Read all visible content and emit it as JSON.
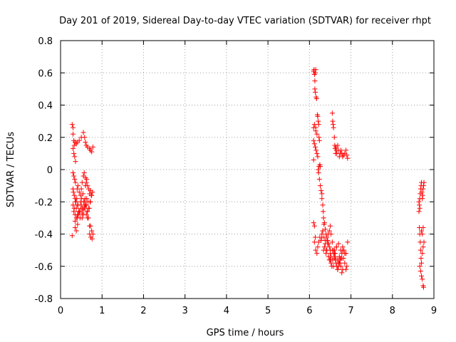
{
  "chart_data": {
    "type": "scatter",
    "title": "Day 201 of 2019, Sidereal Day-to-day VTEC variation (SDTVAR) for receiver rhpt",
    "xlabel": "GPS time / hours",
    "ylabel": "SDTVAR / TECUs",
    "xlim": [
      0,
      9
    ],
    "ylim": [
      -0.8,
      0.8
    ],
    "x_ticks": [
      0,
      1,
      2,
      3,
      4,
      5,
      6,
      7,
      8,
      9
    ],
    "x_tick_labels": [
      "0",
      "1",
      "2",
      "3",
      "4",
      "5",
      "6",
      "7",
      "8",
      "9"
    ],
    "y_ticks": [
      -0.8,
      -0.6,
      -0.4,
      -0.2,
      0,
      0.2,
      0.4,
      0.6,
      0.8
    ],
    "y_tick_labels": [
      "-0.8",
      "-0.6",
      "-0.4",
      "-0.2",
      "0",
      "0.2",
      "0.4",
      "0.6",
      "0.8"
    ],
    "grid": true,
    "marker": "+",
    "series": [
      {
        "name": "SDTVAR",
        "color": "#ff0000",
        "x": [
          0.28,
          0.3,
          0.3,
          0.32,
          0.33,
          0.35,
          0.38,
          0.4,
          0.45,
          0.5,
          0.55,
          0.58,
          0.6,
          0.62,
          0.65,
          0.7,
          0.72,
          0.75,
          0.78,
          0.3,
          0.32,
          0.34,
          0.36,
          0.3,
          0.32,
          0.34,
          0.36,
          0.3,
          0.31,
          0.33,
          0.35,
          0.37,
          0.4,
          0.42,
          0.45,
          0.48,
          0.5,
          0.52,
          0.55,
          0.57,
          0.6,
          0.62,
          0.65,
          0.68,
          0.7,
          0.72,
          0.75,
          0.77,
          0.3,
          0.33,
          0.36,
          0.39,
          0.42,
          0.45,
          0.48,
          0.51,
          0.54,
          0.57,
          0.6,
          0.63,
          0.66,
          0.69,
          0.72,
          0.32,
          0.35,
          0.38,
          0.41,
          0.44,
          0.47,
          0.5,
          0.53,
          0.56,
          0.59,
          0.62,
          0.65,
          0.68,
          0.71,
          0.74,
          0.4,
          0.43,
          0.46,
          0.49,
          0.52,
          0.55,
          0.58,
          0.61,
          0.64,
          0.67,
          0.7,
          0.35,
          0.38,
          0.41,
          0.44,
          0.35,
          0.38,
          0.41,
          0.7,
          0.73,
          0.76,
          0.72,
          0.75,
          0.78,
          0.52,
          0.55,
          0.58,
          0.62,
          0.65,
          0.6,
          0.63,
          0.28,
          6.1,
          6.11,
          6.12,
          6.13,
          6.14,
          6.15,
          6.13,
          6.14,
          6.16,
          6.17,
          6.12,
          6.15,
          6.18,
          6.1,
          6.15,
          6.1,
          6.12,
          6.14,
          6.16,
          6.18,
          6.2,
          6.19,
          6.2,
          6.21,
          6.22,
          6.23,
          6.24,
          6.21,
          6.22,
          6.23,
          6.25,
          6.26,
          6.24,
          6.26,
          6.28,
          6.3,
          6.3,
          6.32,
          6.33,
          6.34,
          6.35,
          6.36,
          6.38,
          6.4,
          6.42,
          6.44,
          6.46,
          6.48,
          6.5,
          6.52,
          6.5,
          6.55,
          6.56,
          6.57,
          6.58,
          6.6,
          6.61,
          6.62,
          6.63,
          6.64,
          6.65,
          6.66,
          6.68,
          6.7,
          6.72,
          6.74,
          6.76,
          6.78,
          6.8,
          6.82,
          6.85,
          6.88,
          6.9,
          6.92,
          6.1,
          6.1,
          6.12,
          6.14,
          6.12,
          6.15,
          6.18,
          6.2,
          6.22,
          6.25,
          6.28,
          6.3,
          6.32,
          6.35,
          6.38,
          6.4,
          6.42,
          6.45,
          6.48,
          6.5,
          6.52,
          6.55,
          6.58,
          6.6,
          6.62,
          6.65,
          6.68,
          6.7,
          6.72,
          6.75,
          6.78,
          6.8,
          6.82,
          6.85,
          6.88,
          6.9,
          6.92,
          6.3,
          6.32,
          6.34,
          6.36,
          6.38,
          6.4,
          6.42,
          6.44,
          6.46,
          6.48,
          6.5,
          6.52,
          6.54,
          6.56,
          6.58,
          6.6,
          6.62,
          6.64,
          6.66,
          6.68,
          6.7,
          6.72,
          6.74,
          6.76,
          6.78,
          6.8,
          6.55,
          6.6,
          6.65,
          6.7,
          6.75,
          6.8,
          6.85,
          6.58,
          6.63,
          6.68,
          6.73,
          6.78,
          6.83,
          6.88,
          8.64,
          8.65,
          8.66,
          8.67,
          8.68,
          8.69,
          8.7,
          8.71,
          8.72,
          8.73,
          8.74,
          8.75,
          8.76,
          8.65,
          8.66,
          8.67,
          8.68,
          8.69,
          8.7,
          8.72,
          8.74,
          8.76,
          8.66,
          8.68,
          8.7,
          8.72,
          8.74,
          8.75,
          8.7,
          8.72,
          8.74,
          8.64,
          8.66
        ],
        "y": [
          0.28,
          0.26,
          0.22,
          0.18,
          0.15,
          0.17,
          0.16,
          0.17,
          0.18,
          0.2,
          0.23,
          0.2,
          0.17,
          0.15,
          0.14,
          0.13,
          0.12,
          0.11,
          0.14,
          0.13,
          0.1,
          0.08,
          0.05,
          -0.02,
          -0.04,
          -0.06,
          -0.08,
          -0.12,
          -0.14,
          -0.16,
          -0.18,
          -0.2,
          -0.12,
          -0.1,
          -0.14,
          -0.16,
          -0.12,
          -0.08,
          -0.04,
          -0.02,
          -0.05,
          -0.08,
          -0.1,
          -0.12,
          -0.15,
          -0.13,
          -0.16,
          -0.14,
          -0.22,
          -0.24,
          -0.2,
          -0.18,
          -0.22,
          -0.26,
          -0.2,
          -0.18,
          -0.15,
          -0.2,
          -0.22,
          -0.18,
          -0.2,
          -0.24,
          -0.2,
          -0.26,
          -0.28,
          -0.24,
          -0.22,
          -0.26,
          -0.3,
          -0.22,
          -0.24,
          -0.2,
          -0.18,
          -0.22,
          -0.26,
          -0.24,
          -0.2,
          -0.16,
          -0.3,
          -0.28,
          -0.26,
          -0.24,
          -0.3,
          -0.28,
          -0.24,
          -0.22,
          -0.26,
          -0.3,
          -0.35,
          -0.32,
          -0.3,
          -0.28,
          -0.26,
          -0.36,
          -0.38,
          -0.34,
          -0.4,
          -0.42,
          -0.43,
          -0.35,
          -0.38,
          -0.4,
          -0.27,
          -0.25,
          -0.23,
          -0.28,
          -0.3,
          -0.1,
          -0.06,
          -0.41,
          0.61,
          0.62,
          0.59,
          0.55,
          0.6,
          0.62,
          0.5,
          0.48,
          0.45,
          0.44,
          0.28,
          0.26,
          0.22,
          0.26,
          0.24,
          0.18,
          0.16,
          0.14,
          0.12,
          0.1,
          0.08,
          0.34,
          0.33,
          0.3,
          0.28,
          0.2,
          0.18,
          0.0,
          -0.02,
          0.02,
          0.03,
          0.02,
          -0.06,
          -0.1,
          -0.13,
          -0.15,
          -0.18,
          -0.22,
          -0.26,
          -0.3,
          -0.34,
          -0.33,
          -0.37,
          -0.4,
          -0.42,
          -0.44,
          -0.46,
          -0.48,
          -0.5,
          -0.54,
          -0.56,
          0.35,
          0.3,
          0.28,
          0.26,
          0.2,
          0.15,
          0.13,
          0.1,
          0.14,
          0.12,
          0.1,
          0.15,
          0.12,
          0.08,
          0.1,
          0.12,
          0.1,
          0.08,
          0.09,
          0.1,
          0.12,
          0.09,
          0.07,
          0.06,
          -0.33,
          -0.35,
          -0.42,
          -0.45,
          -0.5,
          -0.52,
          -0.48,
          -0.45,
          -0.42,
          -0.44,
          -0.4,
          -0.38,
          -0.42,
          -0.46,
          -0.5,
          -0.44,
          -0.4,
          -0.38,
          -0.35,
          -0.4,
          -0.45,
          -0.5,
          -0.55,
          -0.52,
          -0.48,
          -0.56,
          -0.6,
          -0.58,
          -0.55,
          -0.52,
          -0.5,
          -0.55,
          -0.58,
          -0.62,
          -0.6,
          -0.45,
          -0.42,
          -0.38,
          -0.5,
          -0.48,
          -0.44,
          -0.52,
          -0.5,
          -0.46,
          -0.54,
          -0.56,
          -0.52,
          -0.58,
          -0.6,
          -0.56,
          -0.52,
          -0.5,
          -0.54,
          -0.58,
          -0.6,
          -0.62,
          -0.58,
          -0.54,
          -0.56,
          -0.6,
          -0.64,
          -0.62,
          -0.5,
          -0.52,
          -0.48,
          -0.46,
          -0.5,
          -0.48,
          -0.52,
          -0.6,
          -0.56,
          -0.62,
          -0.58,
          -0.55,
          -0.5,
          -0.52,
          -0.2,
          -0.22,
          -0.18,
          -0.15,
          -0.12,
          -0.1,
          -0.08,
          -0.14,
          -0.18,
          -0.16,
          -0.12,
          -0.1,
          -0.08,
          -0.36,
          -0.4,
          -0.45,
          -0.5,
          -0.55,
          -0.58,
          -0.52,
          -0.48,
          -0.45,
          -0.6,
          -0.63,
          -0.66,
          -0.68,
          -0.72,
          -0.73,
          -0.38,
          -0.4,
          -0.36,
          -0.26,
          -0.24
        ]
      }
    ]
  }
}
